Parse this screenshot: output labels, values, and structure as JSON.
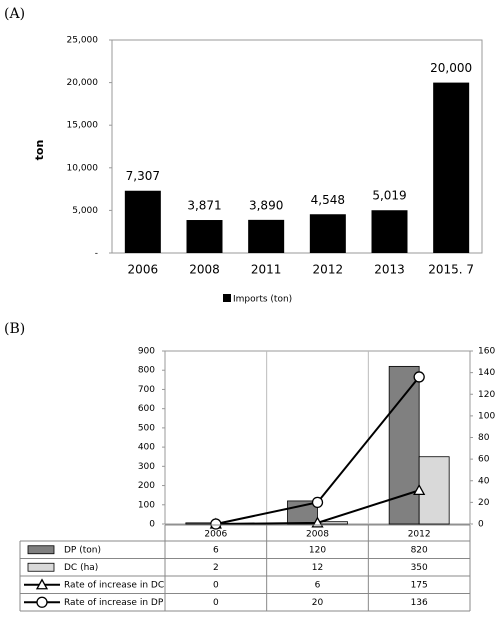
{
  "panels": [
    "(A)",
    "(B)"
  ],
  "chart_data": [
    {
      "type": "bar",
      "ylabel": "ton",
      "categories": [
        "2006",
        "2008",
        "2011",
        "2012",
        "2013",
        "2015. 7"
      ],
      "series": [
        {
          "name": "Imports (ton)",
          "color": "#000000",
          "values": [
            7307,
            3871,
            3890,
            4548,
            5019,
            20000
          ],
          "value_labels": [
            "7,307",
            "3,871",
            "3,890",
            "4,548",
            "5,019",
            "20,000"
          ]
        }
      ],
      "ylim": [
        0,
        25000
      ],
      "yticks": [
        {
          "value": 0,
          "label": "-"
        },
        {
          "value": 5000,
          "label": "5,000"
        },
        {
          "value": 10000,
          "label": "10,000"
        },
        {
          "value": 15000,
          "label": "15,000"
        },
        {
          "value": 20000,
          "label": "20,000"
        },
        {
          "value": 25000,
          "label": "25,000"
        }
      ],
      "legend": "bottom"
    },
    {
      "type": "combo",
      "categories": [
        "2006",
        "2008",
        "2012"
      ],
      "series": [
        {
          "name": "DP (ton)",
          "type": "bar",
          "color": "#808080",
          "values": [
            6,
            120,
            820
          ]
        },
        {
          "name": "DC (ha)",
          "type": "bar",
          "color": "#d9d9d9",
          "values": [
            2,
            12,
            350
          ]
        },
        {
          "name": "Rate of increase in DC",
          "type": "line",
          "marker": "triangle",
          "color": "#000000",
          "values": [
            0,
            6,
            175
          ]
        },
        {
          "name": "Rate of increase in DP",
          "type": "line",
          "marker": "circle",
          "color": "#000000",
          "axis": "y2",
          "values": [
            0,
            20,
            136
          ]
        }
      ],
      "ylim": [
        0,
        900
      ],
      "yticks": [
        0,
        100,
        200,
        300,
        400,
        500,
        600,
        700,
        800,
        900
      ],
      "y2lim": [
        0,
        160
      ],
      "y2ticks": [
        0,
        20,
        40,
        60,
        80,
        100,
        120,
        140,
        160
      ],
      "legend": "data-table"
    }
  ]
}
